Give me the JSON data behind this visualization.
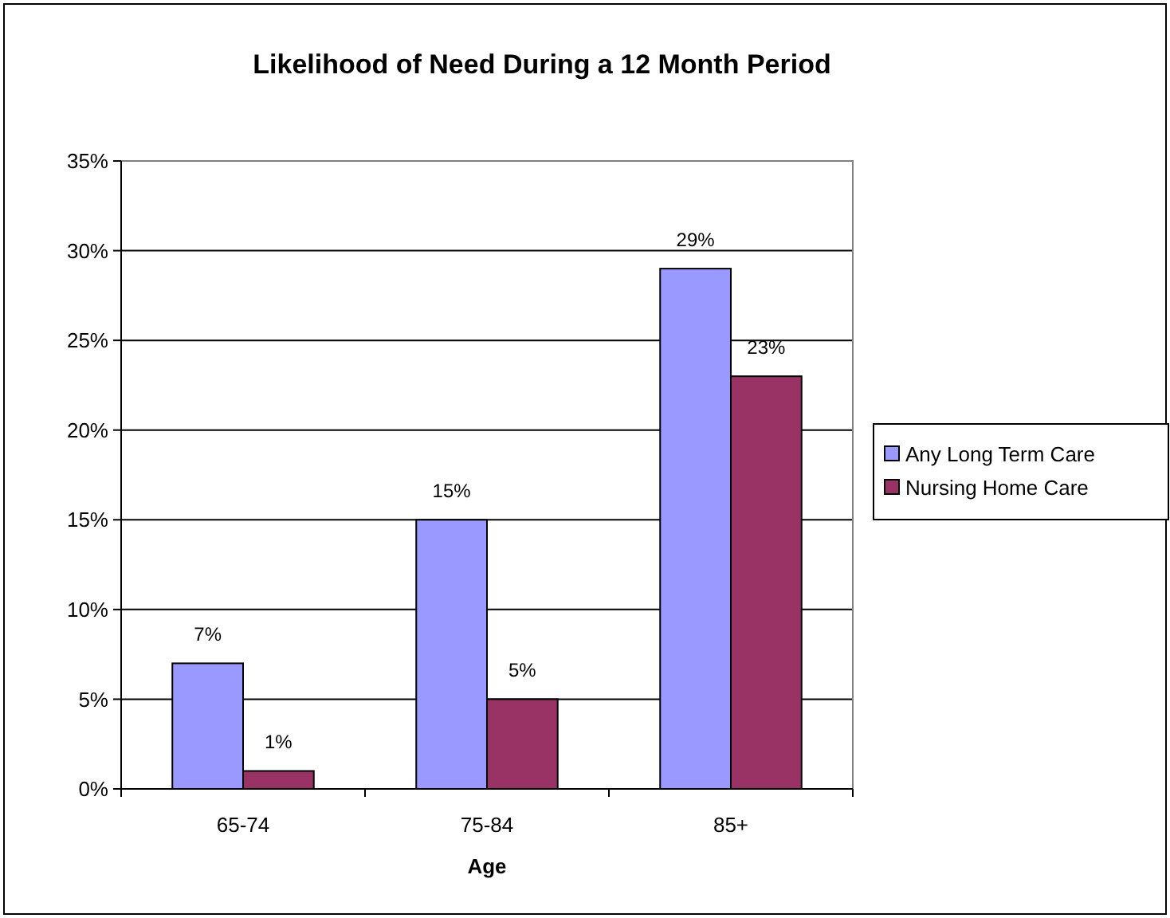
{
  "chart_data": {
    "type": "bar",
    "title": "Likelihood of Need During a 12 Month Period",
    "xlabel": "Age",
    "categories": [
      "65-74",
      "75-84",
      "85+"
    ],
    "series": [
      {
        "name": "Any Long Term Care",
        "color": "#9999ff",
        "values": [
          7,
          15,
          29
        ],
        "value_labels": [
          "7%",
          "15%",
          "29%"
        ]
      },
      {
        "name": "Nursing Home Care",
        "color": "#993366",
        "values": [
          1,
          5,
          23
        ],
        "value_labels": [
          "1%",
          "5%",
          "23%"
        ]
      }
    ],
    "ylim": [
      0,
      35
    ],
    "yticks": [
      {
        "value": 0,
        "label": "0%"
      },
      {
        "value": 5,
        "label": "5%"
      },
      {
        "value": 10,
        "label": "10%"
      },
      {
        "value": 15,
        "label": "15%"
      },
      {
        "value": 20,
        "label": "20%"
      },
      {
        "value": 25,
        "label": "25%"
      },
      {
        "value": 30,
        "label": "30%"
      },
      {
        "value": 35,
        "label": "35%"
      }
    ],
    "grid": "y",
    "legend": "right"
  }
}
